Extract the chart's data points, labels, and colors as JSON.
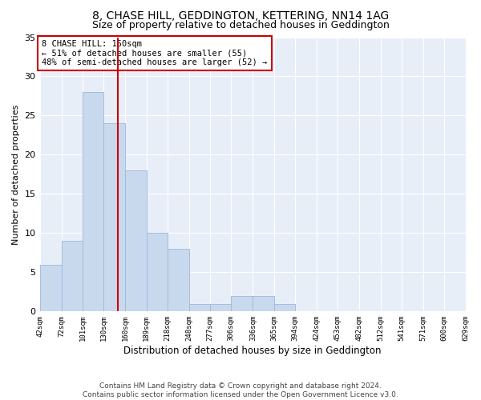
{
  "title": "8, CHASE HILL, GEDDINGTON, KETTERING, NN14 1AG",
  "subtitle": "Size of property relative to detached houses in Geddington",
  "xlabel": "Distribution of detached houses by size in Geddington",
  "ylabel": "Number of detached properties",
  "bar_color": "#c8d9ee",
  "bar_edge_color": "#9ab8d8",
  "background_color": "#e8eef8",
  "grid_color": "#ffffff",
  "vline_color": "#cc0000",
  "vline_x": 150,
  "annotation_text": "8 CHASE HILL: 150sqm\n← 51% of detached houses are smaller (55)\n48% of semi-detached houses are larger (52) →",
  "annotation_box_color": "#ffffff",
  "annotation_box_edge": "#cc0000",
  "bins": [
    42,
    72,
    101,
    130,
    160,
    189,
    218,
    248,
    277,
    306,
    336,
    365,
    394,
    424,
    453,
    482,
    512,
    541,
    571,
    600,
    629
  ],
  "bin_labels": [
    "42sqm",
    "72sqm",
    "101sqm",
    "130sqm",
    "160sqm",
    "189sqm",
    "218sqm",
    "248sqm",
    "277sqm",
    "306sqm",
    "336sqm",
    "365sqm",
    "394sqm",
    "424sqm",
    "453sqm",
    "482sqm",
    "512sqm",
    "541sqm",
    "571sqm",
    "600sqm",
    "629sqm"
  ],
  "bar_heights": [
    6,
    9,
    28,
    24,
    18,
    10,
    8,
    1,
    1,
    2,
    2,
    1,
    0,
    0,
    0,
    0,
    0,
    0,
    0,
    0
  ],
  "ylim": [
    0,
    35
  ],
  "yticks": [
    0,
    5,
    10,
    15,
    20,
    25,
    30,
    35
  ],
  "footer_text": "Contains HM Land Registry data © Crown copyright and database right 2024.\nContains public sector information licensed under the Open Government Licence v3.0.",
  "title_fontsize": 10,
  "subtitle_fontsize": 9,
  "annotation_fontsize": 7.5,
  "footer_fontsize": 6.5,
  "ylabel_fontsize": 8,
  "xlabel_fontsize": 8.5
}
